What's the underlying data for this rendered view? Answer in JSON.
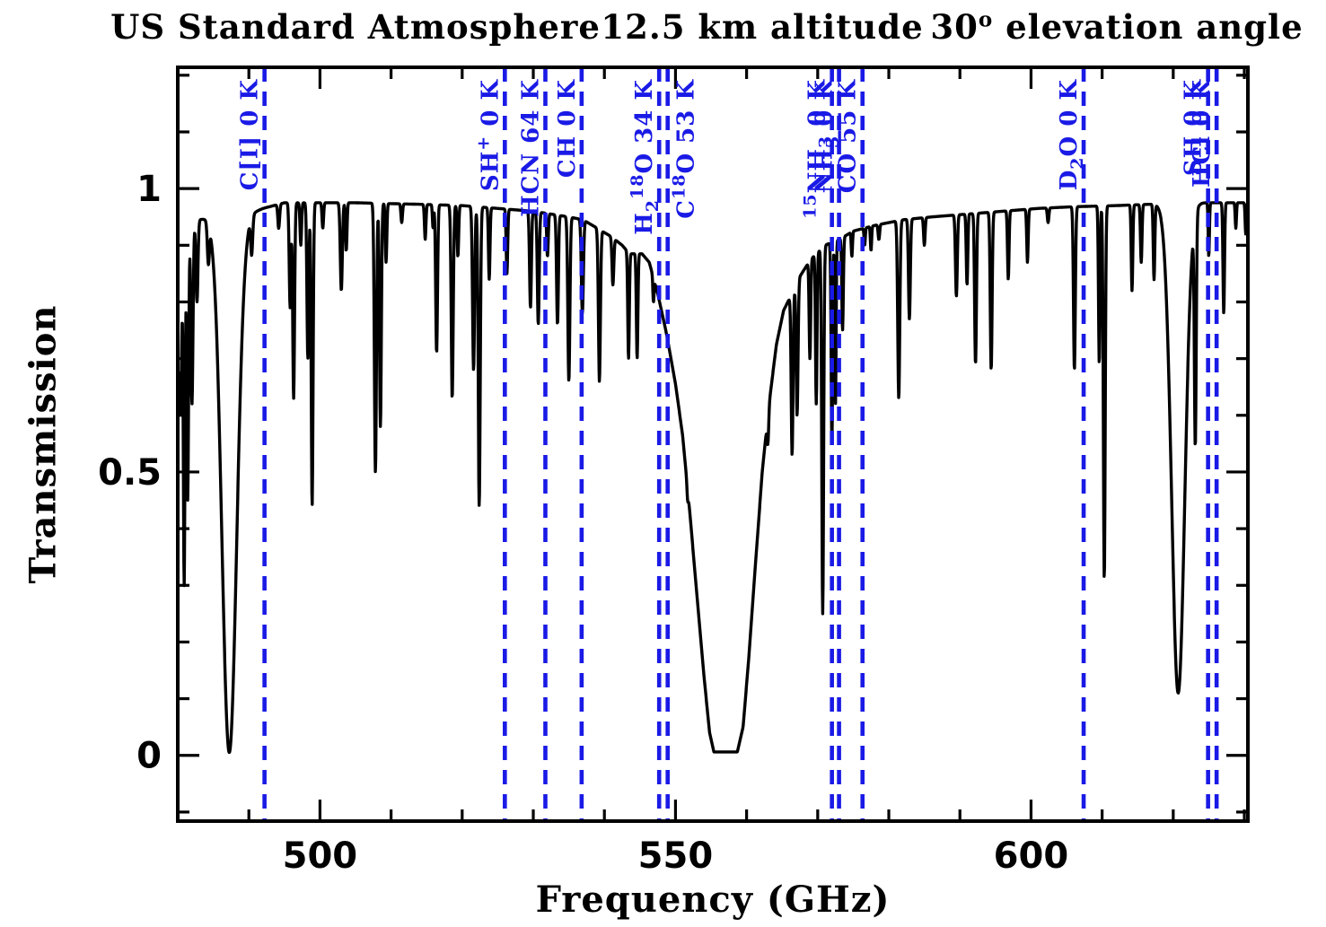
{
  "title_segments": {
    "s1": "US Standard Atmosphere",
    "s2": "12.5 km altitude",
    "s3_value": "30",
    "s3_sup": "o",
    "s3_rest": " elevation angle"
  },
  "style": {
    "background": "#ffffff",
    "curve_color": "#000000",
    "frame_color": "#000000",
    "marker_color": "#1a1ae6"
  },
  "chart_data": {
    "type": "line",
    "title": "US Standard Atmosphere  12.5 km altitude  30° elevation angle",
    "xlabel": "Frequency (GHz)",
    "ylabel": "Transmission",
    "x_range": [
      480,
      630.5
    ],
    "y_range": [
      -0.116,
      1.214
    ],
    "grid": false,
    "x_ticks_major": [
      500,
      550,
      600
    ],
    "x_tick_labels": [
      "500",
      "550",
      "600"
    ],
    "x_minor_step": 10,
    "y_ticks_major": [
      0,
      0.5,
      1
    ],
    "y_tick_labels": [
      "0",
      "0.5",
      "1"
    ],
    "y_minor_step": 0.1,
    "continuum_envelope_points": [
      [
        480,
        0.93
      ],
      [
        483,
        0.945
      ],
      [
        485.5,
        0.955
      ],
      [
        486.3,
        0.93
      ],
      [
        488.3,
        0.93
      ],
      [
        490,
        0.955
      ],
      [
        492,
        0.965
      ],
      [
        495,
        0.975
      ],
      [
        505,
        0.975
      ],
      [
        515,
        0.972
      ],
      [
        520,
        0.97
      ],
      [
        525,
        0.965
      ],
      [
        530,
        0.96
      ],
      [
        535,
        0.95
      ],
      [
        537,
        0.945
      ],
      [
        539,
        0.93
      ],
      [
        541,
        0.915
      ],
      [
        542.5,
        0.9
      ],
      [
        543.5,
        0.885
      ],
      [
        545.3,
        0.885
      ],
      [
        546.3,
        0.87
      ],
      [
        547.5,
        0.815
      ],
      [
        548.8,
        0.74
      ],
      [
        550,
        0.655
      ],
      [
        551,
        0.565
      ],
      [
        552,
        0.43
      ],
      [
        553,
        0.285
      ],
      [
        554,
        0.14
      ],
      [
        554.8,
        0.04
      ],
      [
        555.4,
        0.006
      ],
      [
        558.7,
        0.006
      ],
      [
        559.5,
        0.05
      ],
      [
        560.3,
        0.17
      ],
      [
        561.2,
        0.33
      ],
      [
        562.2,
        0.5
      ],
      [
        563.2,
        0.625
      ],
      [
        564.2,
        0.725
      ],
      [
        565.2,
        0.785
      ],
      [
        566,
        0.805
      ],
      [
        567.5,
        0.845
      ],
      [
        569,
        0.875
      ],
      [
        571,
        0.9
      ],
      [
        573,
        0.91
      ],
      [
        575,
        0.925
      ],
      [
        578,
        0.935
      ],
      [
        582,
        0.945
      ],
      [
        586,
        0.95
      ],
      [
        591,
        0.955
      ],
      [
        596,
        0.96
      ],
      [
        601,
        0.965
      ],
      [
        606,
        0.968
      ],
      [
        612,
        0.97
      ],
      [
        618,
        0.973
      ],
      [
        624,
        0.975
      ],
      [
        630.5,
        0.975
      ]
    ],
    "absorption_lines": [
      [
        479.9,
        0.55,
        0.3
      ],
      [
        480.4,
        0.62,
        0.22
      ],
      [
        480.9,
        0.3,
        0.18
      ],
      [
        481.4,
        0.45,
        0.18
      ],
      [
        482.0,
        0.62,
        0.2
      ],
      [
        482.7,
        0.8,
        0.2
      ],
      [
        484.3,
        0.88,
        0.2
      ],
      [
        487.25,
        0.005,
        1.45
      ],
      [
        490.4,
        0.89,
        0.2
      ],
      [
        494.2,
        0.93,
        0.18
      ],
      [
        495.8,
        0.79,
        0.18
      ],
      [
        496.3,
        0.63,
        0.18
      ],
      [
        497.3,
        0.9,
        0.15
      ],
      [
        498.3,
        0.7,
        0.18
      ],
      [
        498.9,
        0.44,
        0.18
      ],
      [
        500.4,
        0.93,
        0.15
      ],
      [
        503.0,
        0.82,
        0.2
      ],
      [
        503.7,
        0.89,
        0.15
      ],
      [
        507.8,
        0.5,
        0.2
      ],
      [
        508.5,
        0.58,
        0.18
      ],
      [
        509.3,
        0.87,
        0.15
      ],
      [
        511.5,
        0.94,
        0.15
      ],
      [
        514.8,
        0.91,
        0.15
      ],
      [
        515.9,
        0.93,
        0.12
      ],
      [
        516.4,
        0.71,
        0.18
      ],
      [
        518.6,
        0.63,
        0.2
      ],
      [
        519.4,
        0.88,
        0.15
      ],
      [
        521.6,
        0.68,
        0.2
      ],
      [
        522.4,
        0.44,
        0.2
      ],
      [
        523.8,
        0.84,
        0.15
      ],
      [
        526.3,
        0.85,
        0.15
      ],
      [
        529.6,
        0.79,
        0.18
      ],
      [
        530.7,
        0.76,
        0.18
      ],
      [
        532.0,
        0.88,
        0.15
      ],
      [
        533.4,
        0.76,
        0.18
      ],
      [
        535.0,
        0.66,
        0.2
      ],
      [
        536.9,
        0.78,
        0.2
      ],
      [
        539.3,
        0.66,
        0.2
      ],
      [
        541.2,
        0.83,
        0.18
      ],
      [
        543.4,
        0.7,
        0.15
      ],
      [
        544.6,
        0.7,
        0.15
      ],
      [
        546.9,
        0.8,
        0.12
      ],
      [
        551.7,
        0.45,
        0.12
      ],
      [
        563.0,
        0.55,
        0.15
      ],
      [
        566.4,
        0.53,
        0.18
      ],
      [
        567.1,
        0.6,
        0.18
      ],
      [
        568.9,
        0.7,
        0.15
      ],
      [
        569.8,
        0.62,
        0.15
      ],
      [
        570.7,
        0.25,
        0.18
      ],
      [
        572.0,
        0.55,
        0.15
      ],
      [
        572.5,
        0.62,
        0.12
      ],
      [
        573.5,
        0.75,
        0.15
      ],
      [
        574.8,
        0.88,
        0.12
      ],
      [
        576.6,
        0.9,
        0.12
      ],
      [
        577.5,
        0.89,
        0.12
      ],
      [
        578.6,
        0.91,
        0.15
      ],
      [
        581.4,
        0.63,
        0.2
      ],
      [
        582.9,
        0.77,
        0.18
      ],
      [
        585.0,
        0.9,
        0.15
      ],
      [
        589.5,
        0.81,
        0.18
      ],
      [
        591.0,
        0.83,
        0.15
      ],
      [
        592.2,
        0.69,
        0.18
      ],
      [
        594.4,
        0.68,
        0.18
      ],
      [
        596.8,
        0.84,
        0.15
      ],
      [
        599.5,
        0.87,
        0.15
      ],
      [
        602.4,
        0.94,
        0.15
      ],
      [
        606.1,
        0.68,
        0.18
      ],
      [
        609.6,
        0.69,
        0.15
      ],
      [
        610.3,
        0.31,
        0.18
      ],
      [
        614.2,
        0.82,
        0.15
      ],
      [
        615.5,
        0.87,
        0.15
      ],
      [
        617.3,
        0.84,
        0.15
      ],
      [
        620.7,
        0.11,
        1.3
      ],
      [
        623.1,
        0.56,
        0.18
      ],
      [
        625.0,
        0.88,
        0.12
      ],
      [
        627.1,
        0.78,
        0.15
      ],
      [
        628.8,
        0.93,
        0.12
      ],
      [
        630.2,
        0.92,
        0.12
      ]
    ],
    "spectral_line_markers": [
      {
        "name": "ci",
        "freq": 492.2,
        "side": "left",
        "parts": [
          {
            "t": "C[I] 0 K"
          }
        ]
      },
      {
        "name": "sh-plus",
        "freq": 526.0,
        "side": "left",
        "parts": [
          {
            "t": "SH"
          },
          {
            "sup": "+"
          },
          {
            "t": " 0 K"
          }
        ]
      },
      {
        "name": "hcn",
        "freq": 531.7,
        "side": "left",
        "parts": [
          {
            "t": "HCN 64 K"
          }
        ]
      },
      {
        "name": "ch",
        "freq": 536.8,
        "side": "left",
        "parts": [
          {
            "t": "CH 0 K"
          }
        ]
      },
      {
        "name": "h2-18o",
        "freq": 547.7,
        "side": "left",
        "parts": [
          {
            "t": "H"
          },
          {
            "sub": "2"
          },
          {
            "sup": "18"
          },
          {
            "t": "O 34 K"
          }
        ]
      },
      {
        "name": "c-18o",
        "freq": 548.9,
        "side": "right",
        "parts": [
          {
            "t": "C"
          },
          {
            "sup": "18"
          },
          {
            "t": "O 53 K"
          }
        ]
      },
      {
        "name": "15nh3",
        "freq": 572.0,
        "side": "left",
        "parts": [
          {
            "sup": "15"
          },
          {
            "t": "NH"
          },
          {
            "sub": "3"
          },
          {
            "t": " 0 K"
          }
        ]
      },
      {
        "name": "nh3",
        "freq": 573.0,
        "side": "left",
        "parts": [
          {
            "t": "NH"
          },
          {
            "sub": "3"
          },
          {
            "t": " 0 K"
          }
        ]
      },
      {
        "name": "co",
        "freq": 576.3,
        "side": "left",
        "parts": [
          {
            "t": "CO 55 K"
          }
        ]
      },
      {
        "name": "d2o",
        "freq": 607.4,
        "side": "left",
        "parts": [
          {
            "t": "D"
          },
          {
            "sub": "2"
          },
          {
            "t": "O 0 K"
          }
        ]
      },
      {
        "name": "sh",
        "freq": 624.9,
        "side": "left",
        "parts": [
          {
            "t": "SH 0 K"
          }
        ]
      },
      {
        "name": "hcl",
        "freq": 626.1,
        "side": "left",
        "parts": [
          {
            "t": "HCl 0 K"
          }
        ]
      }
    ]
  }
}
